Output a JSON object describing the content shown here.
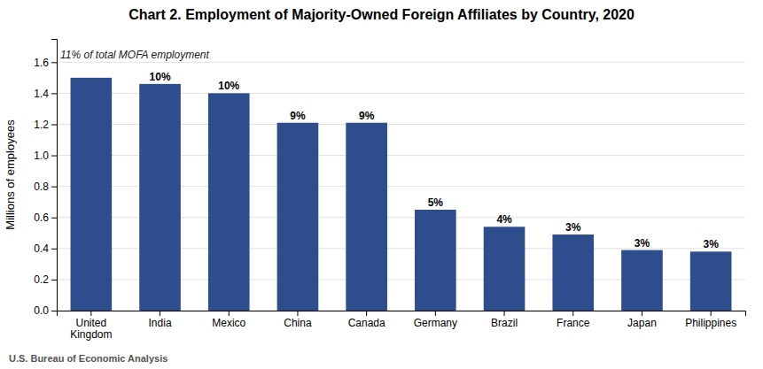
{
  "chart_data": {
    "type": "bar",
    "title": "Chart 2. Employment of Majority-Owned Foreign Affiliates by Country, 2020",
    "ylabel": "Millions of employees",
    "categories": [
      "United\nKingdom",
      "India",
      "Mexico",
      "China",
      "Canada",
      "Germany",
      "Brazil",
      "France",
      "Japan",
      "Philippines"
    ],
    "values": [
      1.5,
      1.46,
      1.4,
      1.21,
      1.21,
      0.65,
      0.54,
      0.49,
      0.39,
      0.38
    ],
    "shares": [
      null,
      10,
      10,
      9,
      9,
      5,
      4,
      3,
      3,
      3
    ],
    "share_labels": [
      null,
      "10%",
      "10%",
      "9%",
      "9%",
      "5%",
      "4%",
      "3%",
      "3%",
      "3%"
    ],
    "annotation": "11% of total MOFA employment",
    "source": "U.S. Bureau of Economic Analysis",
    "color": "#2E4D8C",
    "ylim": [
      0,
      1.75
    ],
    "yticks": [
      {
        "value": 0.0,
        "label": "0.0"
      },
      0.2,
      0.4,
      0.6,
      0.8,
      {
        "value": 1.0,
        "label": "1.0"
      },
      1.2,
      1.4,
      1.6
    ],
    "grid": true
  }
}
